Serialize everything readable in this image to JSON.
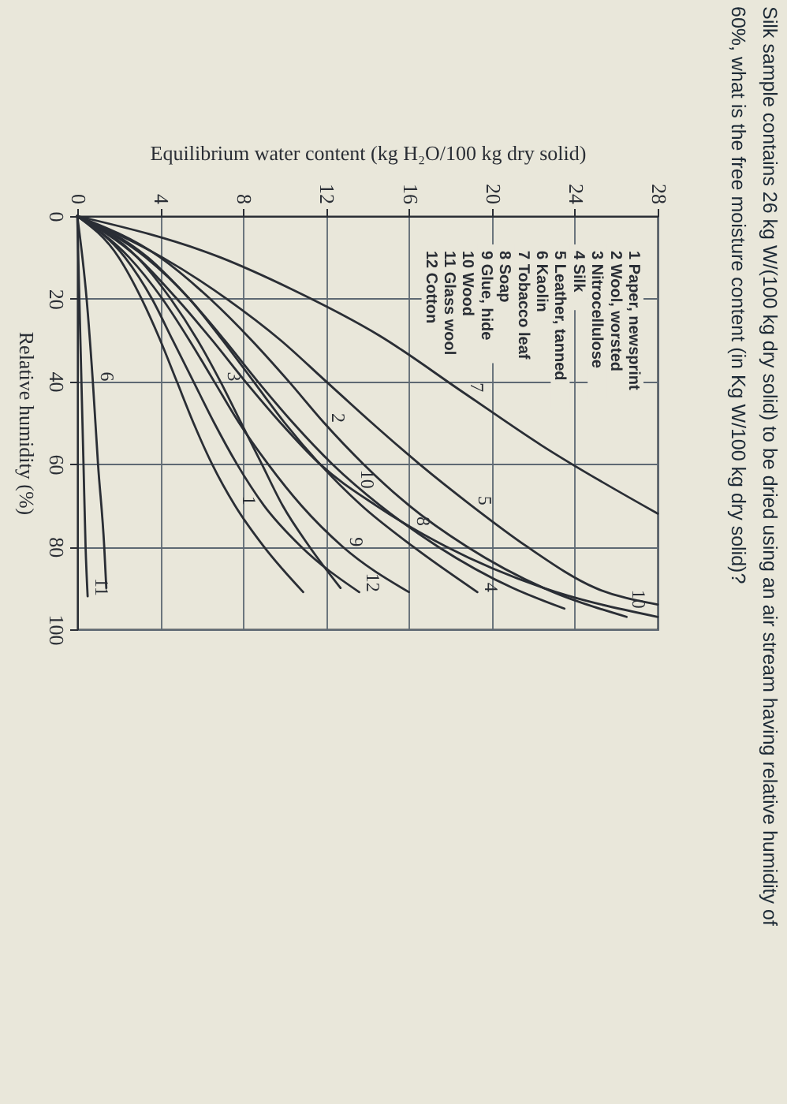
{
  "chart_data": {
    "type": "line",
    "title": "Silk sample contains 26 kg W/(100 kg dry solid) to be dried using an air stream having relative humidity of 60%, what is the free moisture content (in Kg W/100 kg dry solid)?",
    "xlabel": "Equilibrium water content (kg H₂O/100 kg dry solid)",
    "ylabel": "Relative humidity (%)",
    "xlim": [
      0,
      28
    ],
    "xticks": [
      0,
      4,
      8,
      12,
      16,
      20,
      24,
      28
    ],
    "ylim": [
      100,
      0
    ],
    "yticks": [
      0,
      20,
      40,
      60,
      80,
      100
    ],
    "grid": true,
    "series": [
      {
        "color": "#2a2e35",
        "x": [
          0,
          2.0,
          3.1,
          4.0,
          4.8,
          5.6,
          6.5,
          7.6,
          9.0,
          10.9
        ],
        "values": [
          0,
          10,
          20,
          30,
          40,
          50,
          60,
          70,
          80,
          91
        ]
      },
      {
        "color": "#2a2e35",
        "x": [
          0,
          4.0,
          6.4,
          8.4,
          10.2,
          11.9,
          13.8,
          16.0,
          18.8,
          22.5,
          26.5
        ],
        "values": [
          0,
          10,
          20,
          30,
          40,
          50,
          60,
          70,
          80,
          90,
          97
        ]
      },
      {
        "color": "#2a2e35",
        "x": [
          0,
          2.9,
          4.5,
          5.8,
          6.9,
          7.9,
          8.9,
          9.9,
          11.2,
          12.7
        ],
        "values": [
          0,
          10,
          20,
          30,
          40,
          50,
          60,
          70,
          80,
          90
        ]
      },
      {
        "color": "#2a2e35",
        "x": [
          0,
          3.3,
          5.4,
          7.0,
          8.5,
          10.0,
          11.7,
          13.7,
          16.2,
          19.3
        ],
        "values": [
          0,
          10,
          20,
          30,
          40,
          50,
          60,
          70,
          80,
          91
        ]
      },
      {
        "color": "#2a2e35",
        "x": [
          0,
          4.1,
          7.2,
          9.8,
          12.0,
          14.2,
          16.5,
          19.0,
          21.7,
          25.0,
          28.0
        ],
        "values": [
          0,
          10,
          20,
          30,
          40,
          50,
          60,
          70,
          80,
          90,
          94
        ]
      },
      {
        "color": "#2a2e35",
        "x": [
          0,
          0.45,
          0.75,
          1.0,
          1.3,
          1.4
        ],
        "values": [
          0,
          20,
          40,
          60,
          80,
          90
        ]
      },
      {
        "color": "#2a2e35",
        "x": [
          0,
          6.9,
          10.3,
          14.6,
          18.6,
          22.4,
          28.0
        ],
        "values": [
          0,
          10,
          17.6,
          29,
          42.6,
          55.5,
          72
        ]
      },
      {
        "color": "#2a2e35",
        "x": [
          0,
          3.4,
          5.4,
          7.1,
          8.7,
          10.4,
          12.3,
          14.6,
          17.4,
          21.0,
          23.5
        ],
        "values": [
          0,
          10,
          20,
          30,
          40,
          50,
          60,
          70,
          80,
          90,
          95
        ]
      },
      {
        "color": "#2a2e35",
        "x": [
          0,
          2.5,
          4.1,
          5.4,
          6.6,
          7.8,
          9.2,
          10.8,
          12.8,
          16.0
        ],
        "values": [
          0,
          10,
          20,
          30,
          40,
          50,
          60,
          70,
          80,
          91
        ]
      },
      {
        "color": "#2a2e35",
        "x": [
          0,
          2.9,
          4.8,
          6.5,
          8.1,
          9.8,
          11.7,
          14.4,
          17.8,
          22.5,
          28.0
        ],
        "values": [
          0,
          10,
          20,
          30,
          40,
          50,
          60,
          70,
          80,
          90,
          97
        ]
      },
      {
        "color": "#2a2e35",
        "x": [
          0,
          0.1,
          0.2,
          0.3,
          0.4,
          0.5
        ],
        "values": [
          0,
          20,
          40,
          60,
          80,
          92
        ]
      },
      {
        "color": "#2a2e35",
        "x": [
          0,
          2.3,
          3.6,
          4.6,
          5.6,
          6.6,
          7.7,
          9.0,
          10.8,
          13.6
        ],
        "values": [
          0,
          10,
          20,
          30,
          40,
          50,
          60,
          70,
          80,
          91
        ]
      }
    ],
    "annotations": [
      "1 Paper, newsprint",
      "2 Wool, worsted",
      "3 Nitrocellulose",
      "4 Silk",
      "5 Leather, tanned",
      "6 Kaolin",
      "7 Tobacco leaf",
      "8 Soap",
      "9 Glue, hide",
      "10 Wood",
      "11 Glass wool",
      "12 Cotton",
      {
        "text": "1",
        "x": 7.6,
        "y": 70
      },
      {
        "text": "2",
        "x": 11.9,
        "y": 50
      },
      {
        "text": "3",
        "x": 6.9,
        "y": 40
      },
      {
        "text": "4",
        "x": 19.3,
        "y": 91
      },
      {
        "text": "5",
        "x": 19.0,
        "y": 70
      },
      {
        "text": "6",
        "x": 0.75,
        "y": 40
      },
      {
        "text": "7",
        "x": 18.6,
        "y": 42.6
      },
      {
        "text": "10",
        "x": 13.3,
        "y": 66
      },
      {
        "text": "8",
        "x": 16.0,
        "y": 75
      },
      {
        "text": "9",
        "x": 12.8,
        "y": 80
      },
      {
        "text": "10",
        "x": 26.4,
        "y": 95
      },
      {
        "text": "11",
        "x": 0.5,
        "y": 92
      },
      {
        "text": "12",
        "x": 13.6,
        "y": 91
      }
    ]
  }
}
